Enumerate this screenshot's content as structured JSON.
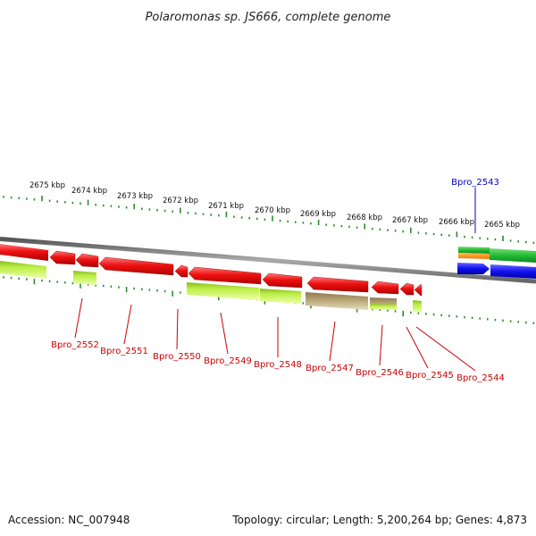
{
  "title": "Polaromonas sp. JS666, complete genome",
  "footer": {
    "accession": "Accession: NC_007948",
    "summary": "Topology: circular; Length: 5,200,264 bp; Genes: 4,873"
  },
  "colors": {
    "tick": "#2e8b2e",
    "backbone": "#888888",
    "gene_red": "#ee1111",
    "gene_green": "#22bb33",
    "gene_blue": "#1111ee",
    "gene_orange": "#ff8800",
    "product_lime": "#aaee33",
    "product_olive": "#b4a070",
    "label_red": "#cc0000",
    "label_blue": "#0000cc"
  },
  "scale_labels": [
    "2675 kbp",
    "2674 kbp",
    "2673 kbp",
    "2672 kbp",
    "2671 kbp",
    "2670 kbp",
    "2669 kbp",
    "2668 kbp",
    "2667 kbp",
    "2666 kbp",
    "2665 kbp"
  ],
  "gene_labels": [
    {
      "text": "Bpro_2552",
      "color": "label_red"
    },
    {
      "text": "Bpro_2551",
      "color": "label_red"
    },
    {
      "text": "Bpro_2550",
      "color": "label_red"
    },
    {
      "text": "Bpro_2549",
      "color": "label_red"
    },
    {
      "text": "Bpro_2548",
      "color": "label_red"
    },
    {
      "text": "Bpro_2547",
      "color": "label_red"
    },
    {
      "text": "Bpro_2546",
      "color": "label_red"
    },
    {
      "text": "Bpro_2545",
      "color": "label_red"
    },
    {
      "text": "Bpro_2544",
      "color": "label_red"
    },
    {
      "text": "Bpro_2543",
      "color": "label_blue"
    }
  ]
}
